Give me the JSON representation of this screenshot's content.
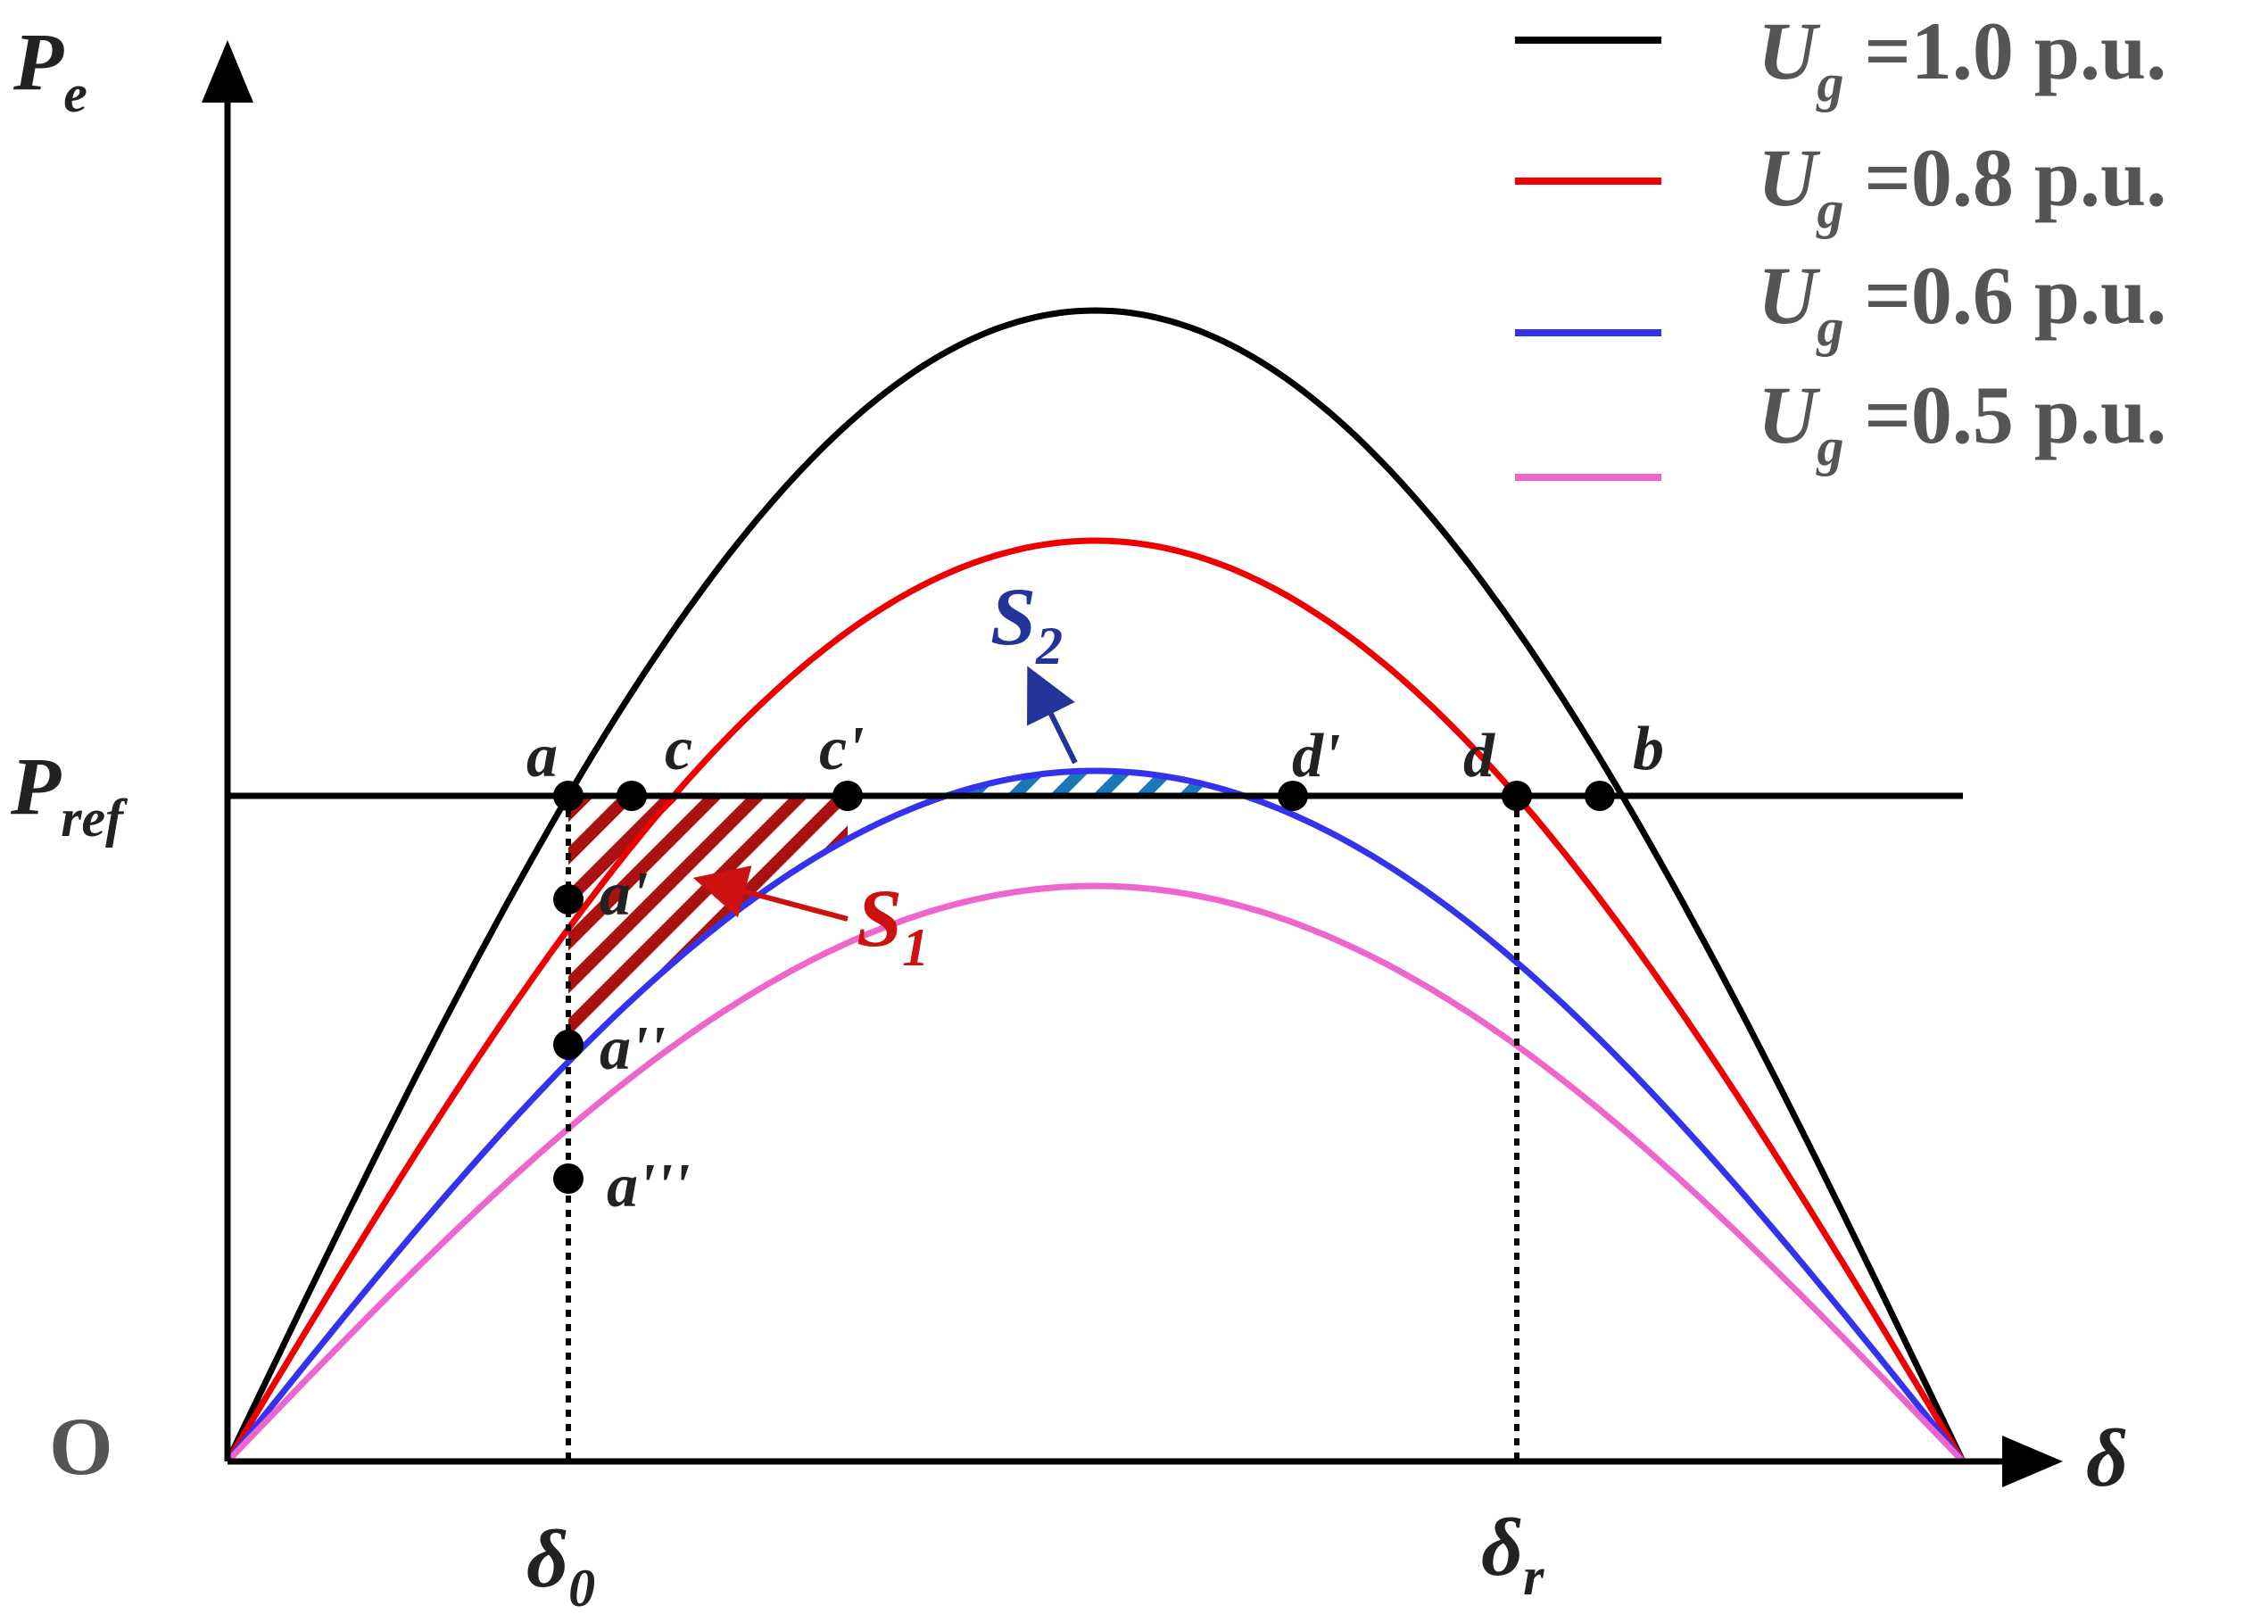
{
  "axes": {
    "y_label": "P",
    "y_label_sub": "e",
    "x_label": "δ",
    "origin_label": "O",
    "pref_label": "P",
    "pref_label_sub": "ref",
    "delta0_label": "δ",
    "delta0_sub": "0",
    "deltar_label": "δ",
    "deltar_sub": "r"
  },
  "legend": [
    {
      "symbol": "U",
      "sub": "g",
      "text": " =1.0 p.u.",
      "color": "#000000"
    },
    {
      "symbol": "U",
      "sub": "g",
      "text": " =0.8 p.u.",
      "color": "#ee0000"
    },
    {
      "symbol": "U",
      "sub": "g",
      "text": " =0.6 p.u.",
      "color": "#3333ee"
    },
    {
      "symbol": "U",
      "sub": "g",
      "text": " =0.5 p.u.",
      "color": "#ee66cc"
    }
  ],
  "curves": [
    {
      "key": "ug10",
      "amplitude": 1.0,
      "color": "#000000"
    },
    {
      "key": "ug08",
      "amplitude": 0.8,
      "color": "#ee0000"
    },
    {
      "key": "ug06",
      "amplitude": 0.6,
      "color": "#3333ee"
    },
    {
      "key": "ug05",
      "amplitude": 0.5,
      "color": "#ee66cc"
    }
  ],
  "points": {
    "a": "a",
    "c": "c",
    "c_prime": "c'",
    "d_prime": "d'",
    "d": "d",
    "b": "b",
    "a_prime": "a'",
    "a_dprime": "a''",
    "a_tprime": "a'''"
  },
  "areas": {
    "s1": {
      "symbol": "S",
      "sub": "1",
      "color": "#aa1111"
    },
    "s2": {
      "symbol": "S",
      "sub": "2",
      "color": "#1a77b8"
    }
  }
}
